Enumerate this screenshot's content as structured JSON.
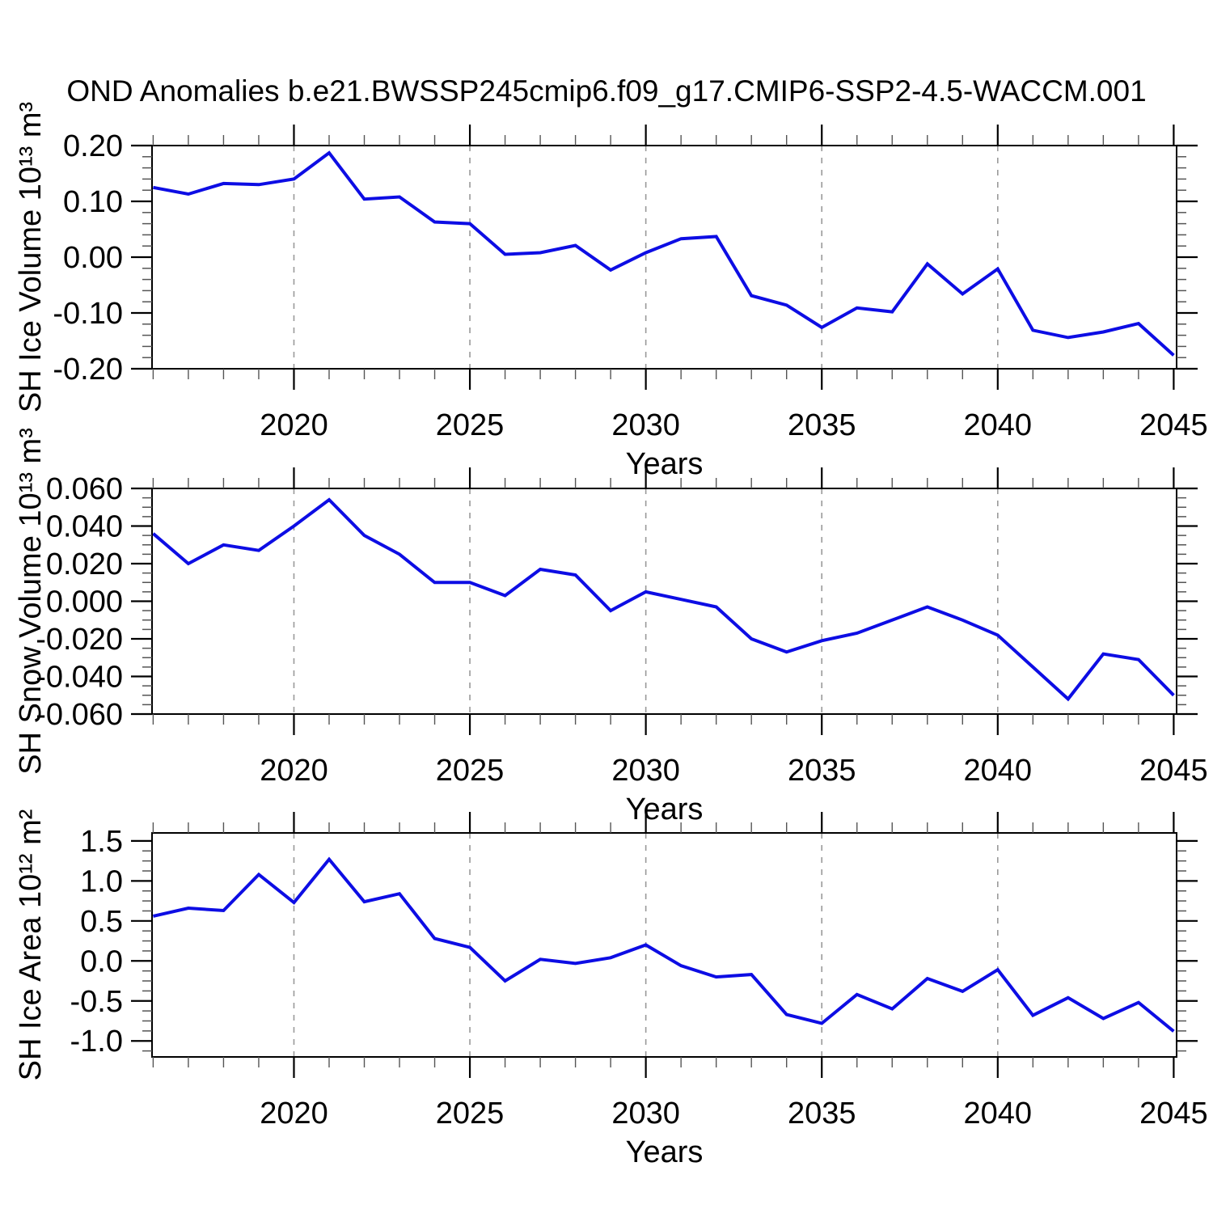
{
  "figure": {
    "title": "OND Anomalies b.e21.BWSSP245cmip6.f09_g17.CMIP6-SSP2-4.5-WACCM.001",
    "background_color": "#ffffff",
    "line_color": "#0d0de4",
    "grid_color": "#999999",
    "axis_color": "#000000",
    "minor_tick_color": "#555555"
  },
  "chart_data": [
    {
      "id": "sh-ice-volume",
      "type": "line",
      "title": "",
      "xlabel": "Years",
      "ylabel": "SH Ice Volume 10¹³ m³",
      "legend": "none",
      "grid": "vertical-dashed-at-major-xticks",
      "x": [
        2016,
        2017,
        2018,
        2019,
        2020,
        2021,
        2022,
        2023,
        2024,
        2025,
        2026,
        2027,
        2028,
        2029,
        2030,
        2031,
        2032,
        2033,
        2034,
        2035,
        2036,
        2037,
        2038,
        2039,
        2040,
        2041,
        2042,
        2043,
        2044,
        2045
      ],
      "values": [
        0.125,
        0.113,
        0.132,
        0.13,
        0.14,
        0.187,
        0.104,
        0.108,
        0.063,
        0.06,
        0.005,
        0.008,
        0.021,
        -0.023,
        0.008,
        0.033,
        0.037,
        -0.069,
        -0.086,
        -0.126,
        -0.091,
        -0.098,
        -0.012,
        -0.066,
        -0.021,
        -0.131,
        -0.144,
        -0.134,
        -0.119,
        -0.176
      ],
      "xlim": [
        2016,
        2045
      ],
      "ylim": [
        -0.2,
        0.2
      ],
      "xticks": [
        2020,
        2025,
        2030,
        2035,
        2040,
        2045
      ],
      "x_minor_step": 1,
      "yticks": [
        0.2,
        0.1,
        0.0,
        -0.1,
        -0.2
      ],
      "ytick_labels": [
        "0.20",
        "0.10",
        "0.00",
        "-0.10",
        "-0.20"
      ],
      "y_minor_step": 0.02
    },
    {
      "id": "sh-snow-volume",
      "type": "line",
      "title": "",
      "xlabel": "Years",
      "ylabel": "SH Snow Volume 10¹³ m³",
      "legend": "none",
      "grid": "vertical-dashed-at-major-xticks",
      "x": [
        2016,
        2017,
        2018,
        2019,
        2020,
        2021,
        2022,
        2023,
        2024,
        2025,
        2026,
        2027,
        2028,
        2029,
        2030,
        2031,
        2032,
        2033,
        2034,
        2035,
        2036,
        2037,
        2038,
        2039,
        2040,
        2041,
        2042,
        2043,
        2044,
        2045
      ],
      "values": [
        0.036,
        0.02,
        0.03,
        0.027,
        0.04,
        0.054,
        0.035,
        0.025,
        0.01,
        0.01,
        0.003,
        0.017,
        0.014,
        -0.005,
        0.005,
        0.001,
        -0.003,
        -0.02,
        -0.027,
        -0.021,
        -0.017,
        -0.01,
        -0.003,
        -0.01,
        -0.018,
        -0.035,
        -0.052,
        -0.028,
        -0.031,
        -0.05
      ],
      "xlim": [
        2016,
        2045
      ],
      "ylim": [
        -0.06,
        0.06
      ],
      "xticks": [
        2020,
        2025,
        2030,
        2035,
        2040,
        2045
      ],
      "x_minor_step": 1,
      "yticks": [
        0.06,
        0.04,
        0.02,
        0.0,
        -0.02,
        -0.04,
        -0.06
      ],
      "ytick_labels": [
        "0.060",
        "0.040",
        "0.020",
        "0.000",
        "-0.020",
        "-0.040",
        "-0.060"
      ],
      "y_minor_step": 0.005
    },
    {
      "id": "sh-ice-area",
      "type": "line",
      "title": "",
      "xlabel": "Years",
      "ylabel": "SH Ice Area 10¹² m²",
      "legend": "none",
      "grid": "vertical-dashed-at-major-xticks",
      "x": [
        2016,
        2017,
        2018,
        2019,
        2020,
        2021,
        2022,
        2023,
        2024,
        2025,
        2026,
        2027,
        2028,
        2029,
        2030,
        2031,
        2032,
        2033,
        2034,
        2035,
        2036,
        2037,
        2038,
        2039,
        2040,
        2041,
        2042,
        2043,
        2044,
        2045
      ],
      "values": [
        0.56,
        0.66,
        0.63,
        1.08,
        0.73,
        1.27,
        0.74,
        0.84,
        0.28,
        0.17,
        -0.25,
        0.02,
        -0.03,
        0.04,
        0.2,
        -0.06,
        -0.2,
        -0.17,
        -0.67,
        -0.78,
        -0.42,
        -0.6,
        -0.22,
        -0.38,
        -0.11,
        -0.68,
        -0.46,
        -0.72,
        -0.52,
        -0.88
      ],
      "xlim": [
        2016,
        2045
      ],
      "ylim": [
        -1.2,
        1.6
      ],
      "xticks": [
        2020,
        2025,
        2030,
        2035,
        2040,
        2045
      ],
      "x_minor_step": 1,
      "yticks": [
        1.5,
        1.0,
        0.5,
        0.0,
        -0.5,
        -1.0
      ],
      "ytick_labels": [
        "1.5",
        "1.0",
        "0.5",
        "0.0",
        "-0.5",
        "-1.0"
      ],
      "y_minor_step": 0.125
    }
  ]
}
